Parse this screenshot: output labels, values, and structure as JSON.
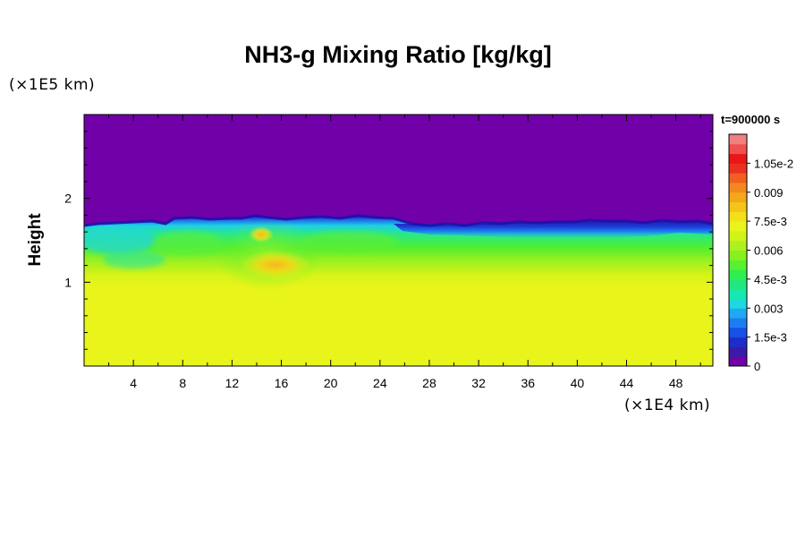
{
  "chart_data": {
    "type": "heatmap",
    "title": "NH3-g Mixing Ratio [kg/kg]",
    "ylabel": "Height",
    "y_multiplier_label": "(×1E5 km)",
    "x_multiplier_label": "(×1E4 km)",
    "time_label": "t=900000 s",
    "xlim": [
      0,
      51
    ],
    "ylim": [
      0,
      3
    ],
    "x_ticks": [
      4,
      8,
      12,
      16,
      20,
      24,
      28,
      32,
      36,
      40,
      44,
      48
    ],
    "y_ticks": [
      1,
      2
    ],
    "colorbar": {
      "min": 0,
      "max": 0.012,
      "labels": [
        "0",
        "1.5e-3",
        "0.003",
        "4.5e-3",
        "0.006",
        "7.5e-3",
        "0.009",
        "1.05e-2"
      ],
      "label_values": [
        0,
        0.0015,
        0.003,
        0.0045,
        0.006,
        0.0075,
        0.009,
        0.0105
      ],
      "colors": [
        "#7000a8",
        "#3a1aa8",
        "#1d2ec8",
        "#1650e6",
        "#1e7df0",
        "#20a8f0",
        "#1ed8e0",
        "#18e8b0",
        "#20e880",
        "#30ee50",
        "#58f030",
        "#88f020",
        "#b0f020",
        "#d0f418",
        "#eaf41a",
        "#f4e018",
        "#f4c418",
        "#f4a818",
        "#f48820",
        "#f06020",
        "#ec3020",
        "#e81818",
        "#f05050",
        "#f08080"
      ]
    },
    "field_description_regions": [
      {
        "region": "above cloud top",
        "y_range": [
          1.7,
          3.0
        ],
        "value": 0
      },
      {
        "region": "lower atmosphere",
        "y_range": [
          0,
          1.0
        ],
        "value": 0.0075
      },
      {
        "region": "plume core",
        "x_range": [
          14,
          18
        ],
        "y_range": [
          1.1,
          1.6
        ],
        "value": 0.0088
      }
    ]
  }
}
